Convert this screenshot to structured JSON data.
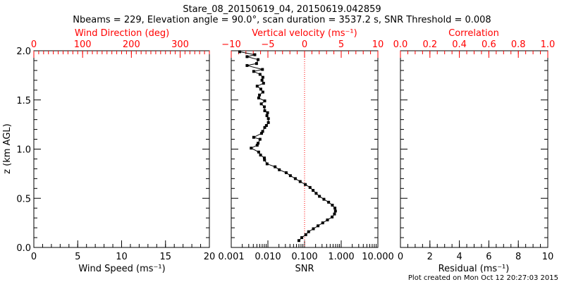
{
  "colors": {
    "axis": "#000000",
    "top_axis": "#ff0000",
    "data": "#000000",
    "zero_line": "#ff0000"
  },
  "chart_data": [
    {
      "type": "line",
      "title": "Stare_08_20150619_04, 20150619.042859",
      "subtitle": "Nbeams = 229, Elevation angle = 90.0°, scan duration = 3537.2 s, SNR Threshold = 0.008",
      "ylabel": "z (km AGL)",
      "ylim": [
        0,
        2
      ],
      "yticks": [
        "0.0",
        "0.5",
        "1.0",
        "1.5",
        "2.0"
      ],
      "xlabel": "Wind Speed (ms⁻¹)",
      "xlim": [
        0,
        20
      ],
      "xticks": [
        "0",
        "5",
        "10",
        "15",
        "20"
      ],
      "top_xlabel": "Wind Direction (deg)",
      "top_xlim": [
        0,
        360
      ],
      "top_xticks": [
        "0",
        "100",
        "200",
        "300"
      ],
      "series": []
    },
    {
      "type": "line",
      "xlabel": "SNR",
      "xscale": "log",
      "xlim": [
        0.001,
        10
      ],
      "xticks": [
        "0.001",
        "0.010",
        "0.100",
        "1.000",
        "10.000"
      ],
      "top_xlabel": "Vertical velocity (ms⁻¹)",
      "top_xlim": [
        -10,
        10
      ],
      "top_xticks": [
        "−10",
        "−5",
        "0",
        "5",
        "10"
      ],
      "ylim": [
        0,
        2
      ],
      "reference_line": {
        "axis": "top_x",
        "value": 0,
        "style": "dotted"
      },
      "series": [
        {
          "name": "SNR",
          "markers": true,
          "z": [
            1.99,
            1.96,
            1.94,
            1.91,
            1.87,
            1.85,
            1.81,
            1.79,
            1.76,
            1.73,
            1.7,
            1.67,
            1.64,
            1.61,
            1.58,
            1.55,
            1.52,
            1.49,
            1.46,
            1.43,
            1.39,
            1.37,
            1.34,
            1.31,
            1.27,
            1.24,
            1.22,
            1.18,
            1.16,
            1.12,
            1.1,
            1.06,
            1.04,
            1.01,
            0.97,
            0.94,
            0.91,
            0.89,
            0.85,
            0.82,
            0.79,
            0.76,
            0.73,
            0.7,
            0.67,
            0.64,
            0.61,
            0.58,
            0.55,
            0.52,
            0.49,
            0.46,
            0.43,
            0.4,
            0.37,
            0.34,
            0.31,
            0.28,
            0.25,
            0.22,
            0.19,
            0.16,
            0.13,
            0.1,
            0.07
          ],
          "snr": [
            0.0017,
            0.0044,
            0.0027,
            0.0054,
            0.0049,
            0.0027,
            0.0071,
            0.0041,
            0.0061,
            0.0073,
            0.0069,
            0.0076,
            0.0051,
            0.0064,
            0.0073,
            0.0059,
            0.0056,
            0.0082,
            0.0066,
            0.008,
            0.0082,
            0.0098,
            0.0094,
            0.0103,
            0.0103,
            0.0091,
            0.0082,
            0.0072,
            0.0067,
            0.0041,
            0.0061,
            0.0054,
            0.0051,
            0.0035,
            0.0056,
            0.0063,
            0.008,
            0.0081,
            0.0095,
            0.0157,
            0.0205,
            0.0315,
            0.041,
            0.056,
            0.076,
            0.105,
            0.141,
            0.171,
            0.207,
            0.255,
            0.337,
            0.453,
            0.573,
            0.674,
            0.695,
            0.655,
            0.565,
            0.421,
            0.313,
            0.233,
            0.174,
            0.129,
            0.108,
            0.084,
            0.07
          ]
        }
      ]
    },
    {
      "type": "line",
      "xlabel": "Residual (ms⁻¹)",
      "xlim": [
        0,
        10
      ],
      "xticks": [
        "0",
        "2",
        "4",
        "6",
        "8",
        "10"
      ],
      "top_xlabel": "Correlation",
      "top_xlim": [
        0,
        1
      ],
      "top_xticks": [
        "0.0",
        "0.2",
        "0.4",
        "0.6",
        "0.8",
        "1.0"
      ],
      "ylim": [
        0,
        2
      ],
      "series": []
    }
  ],
  "footer": "Plot created on Mon Oct 12 20:27:03 2015"
}
